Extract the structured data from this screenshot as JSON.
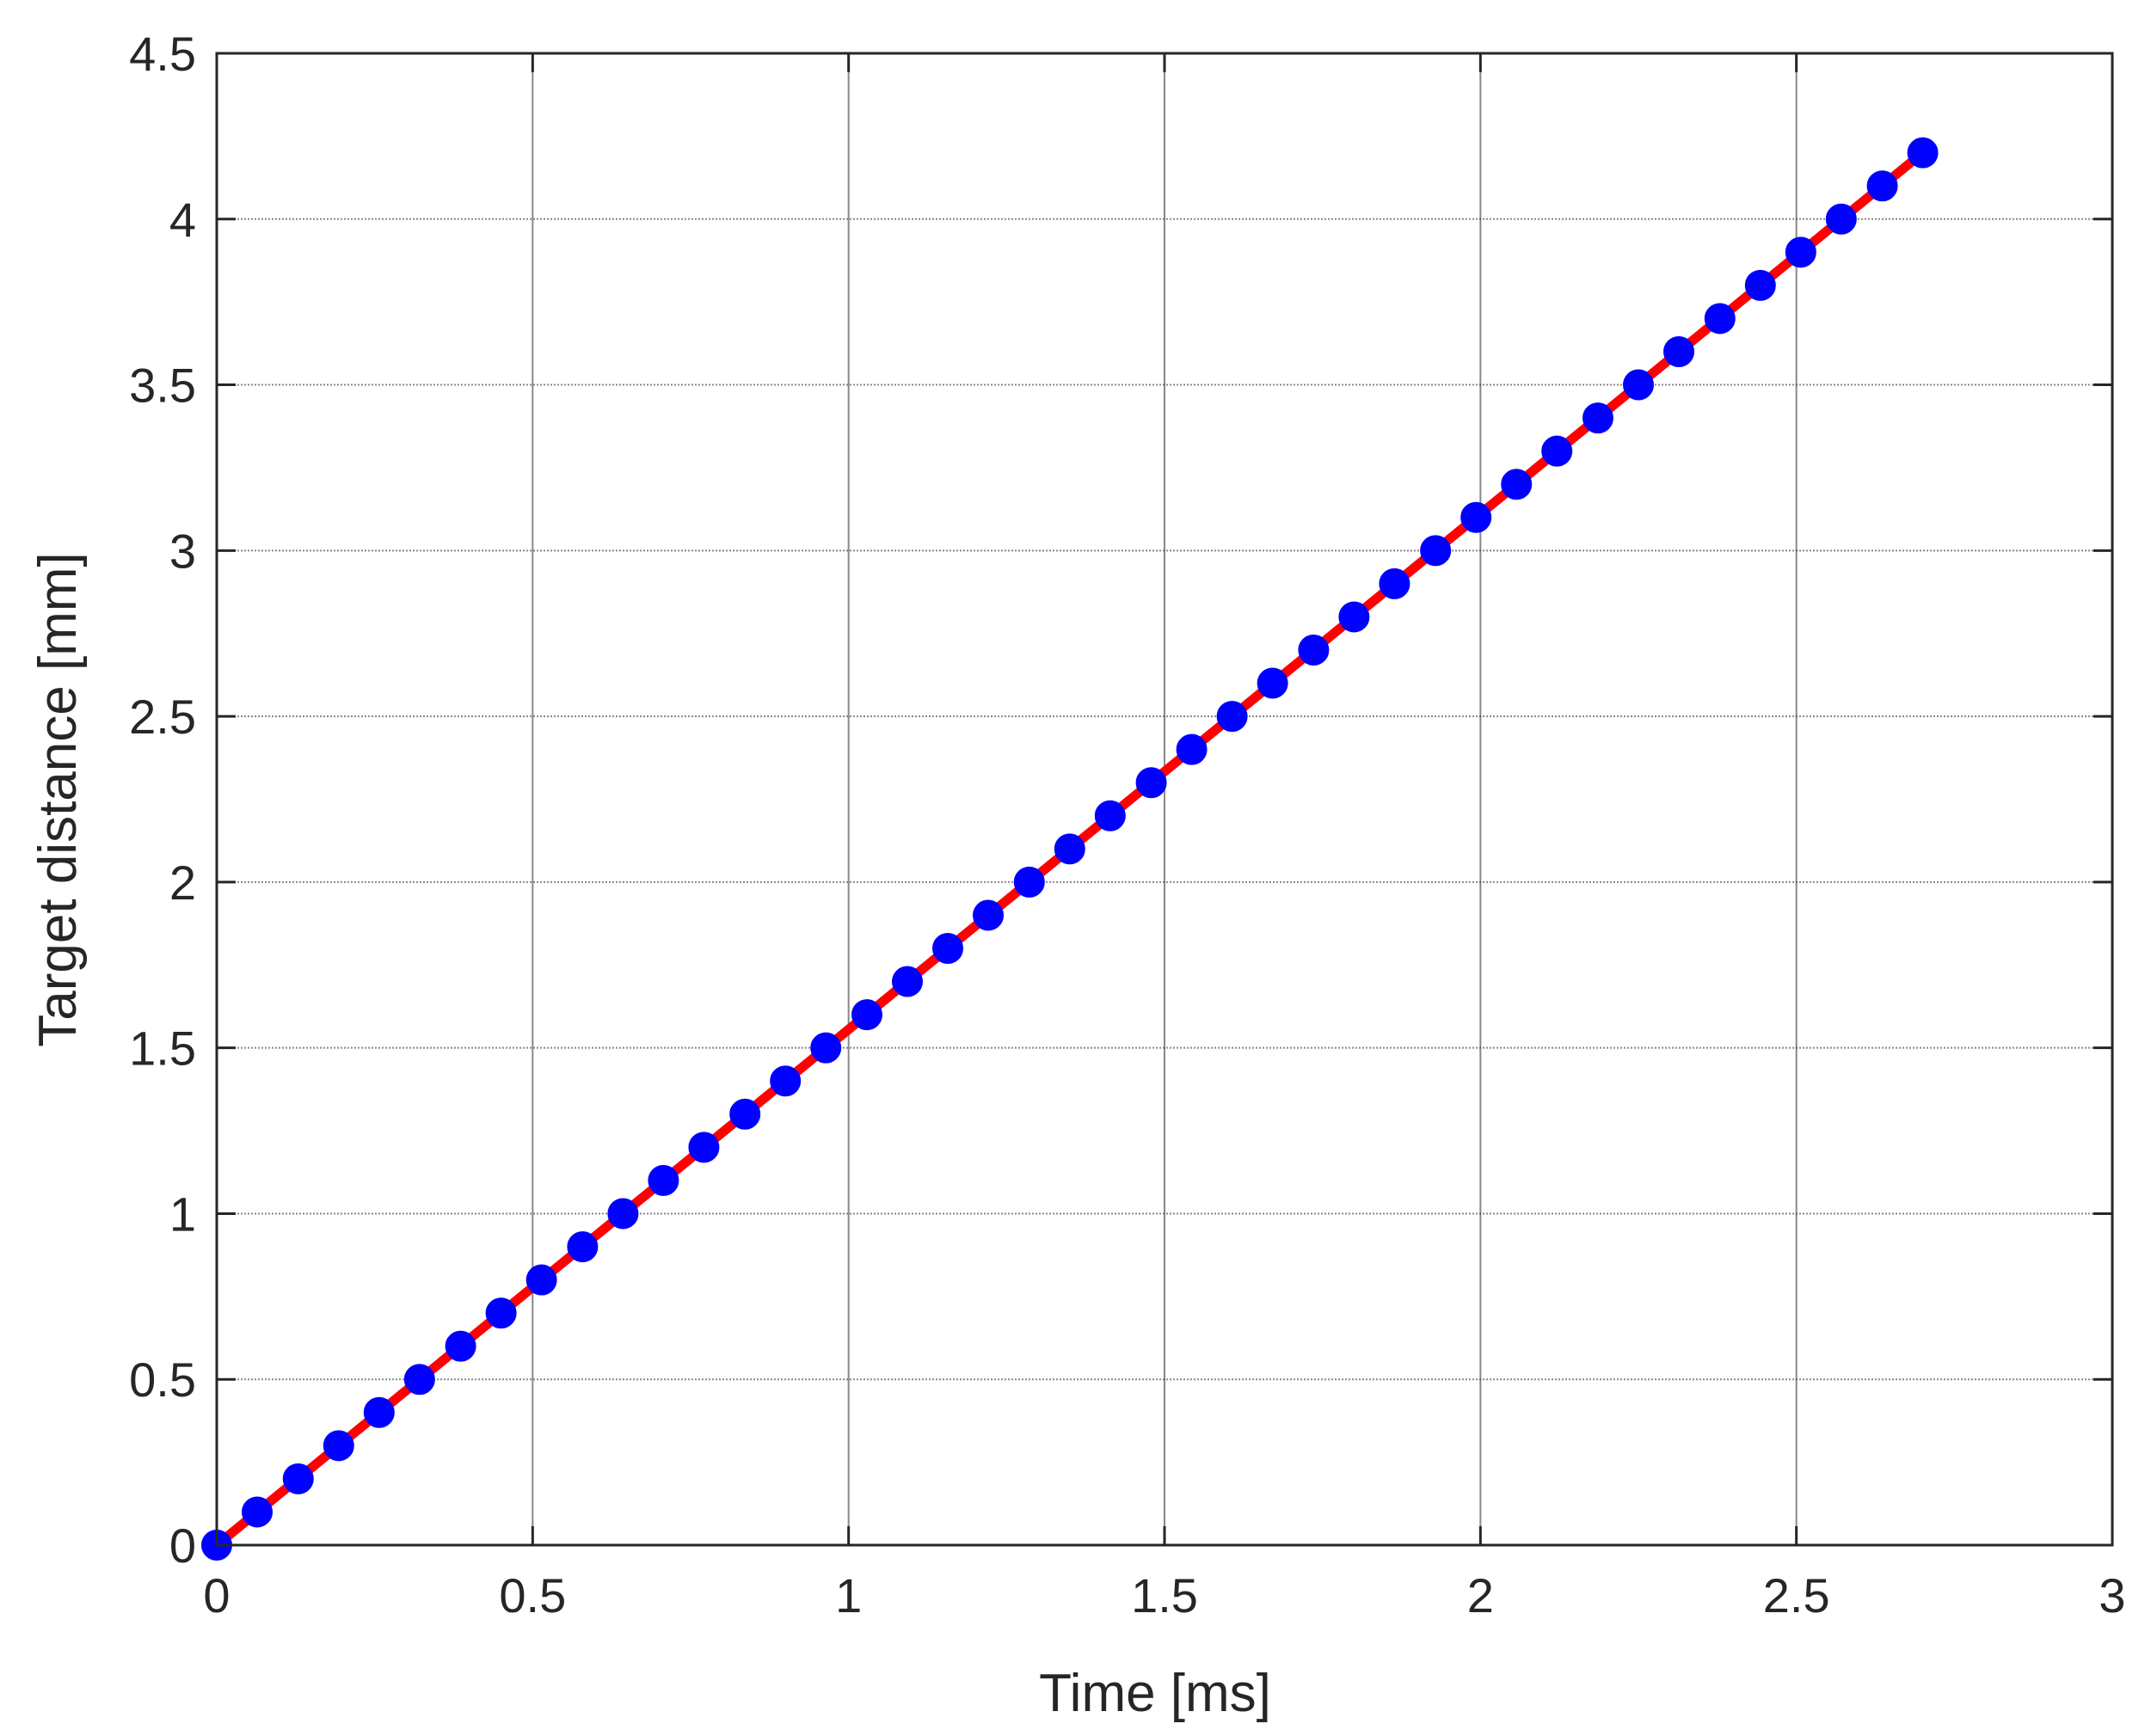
{
  "chart_data": {
    "type": "line",
    "title": "",
    "xlabel": "Time [ms]",
    "ylabel": "Target distance [mm]",
    "xlim": [
      0,
      3
    ],
    "ylim": [
      0,
      4.5
    ],
    "x_ticks": [
      "0",
      "0.5",
      "1",
      "1.5",
      "2",
      "2.5",
      "3"
    ],
    "y_ticks": [
      "0",
      "0.5",
      "1",
      "1.5",
      "2",
      "2.5",
      "3",
      "3.5",
      "4",
      "4.5"
    ],
    "grid": true,
    "legend": "none",
    "series": [
      {
        "style": "solid line",
        "color": "#ff0000",
        "x": [
          0,
          2.7
        ],
        "y": [
          0,
          4.2
        ]
      },
      {
        "style": "filled circle markers",
        "color": "#0000ff",
        "x": [
          0,
          0.064,
          0.129,
          0.193,
          0.257,
          0.321,
          0.386,
          0.45,
          0.514,
          0.579,
          0.643,
          0.707,
          0.771,
          0.836,
          0.9,
          0.964,
          1.029,
          1.093,
          1.157,
          1.221,
          1.286,
          1.35,
          1.414,
          1.479,
          1.543,
          1.607,
          1.671,
          1.736,
          1.8,
          1.864,
          1.929,
          1.993,
          2.057,
          2.121,
          2.186,
          2.25,
          2.314,
          2.379,
          2.443,
          2.507,
          2.571,
          2.636,
          2.7
        ],
        "y": [
          0,
          0.1,
          0.2,
          0.3,
          0.4,
          0.5,
          0.6,
          0.7,
          0.8,
          0.9,
          1.0,
          1.1,
          1.2,
          1.3,
          1.4,
          1.5,
          1.6,
          1.7,
          1.8,
          1.9,
          2.0,
          2.1,
          2.2,
          2.3,
          2.4,
          2.5,
          2.6,
          2.7,
          2.8,
          2.9,
          3.0,
          3.1,
          3.2,
          3.3,
          3.4,
          3.5,
          3.6,
          3.7,
          3.8,
          3.9,
          4.0,
          4.1,
          4.2
        ]
      }
    ]
  }
}
